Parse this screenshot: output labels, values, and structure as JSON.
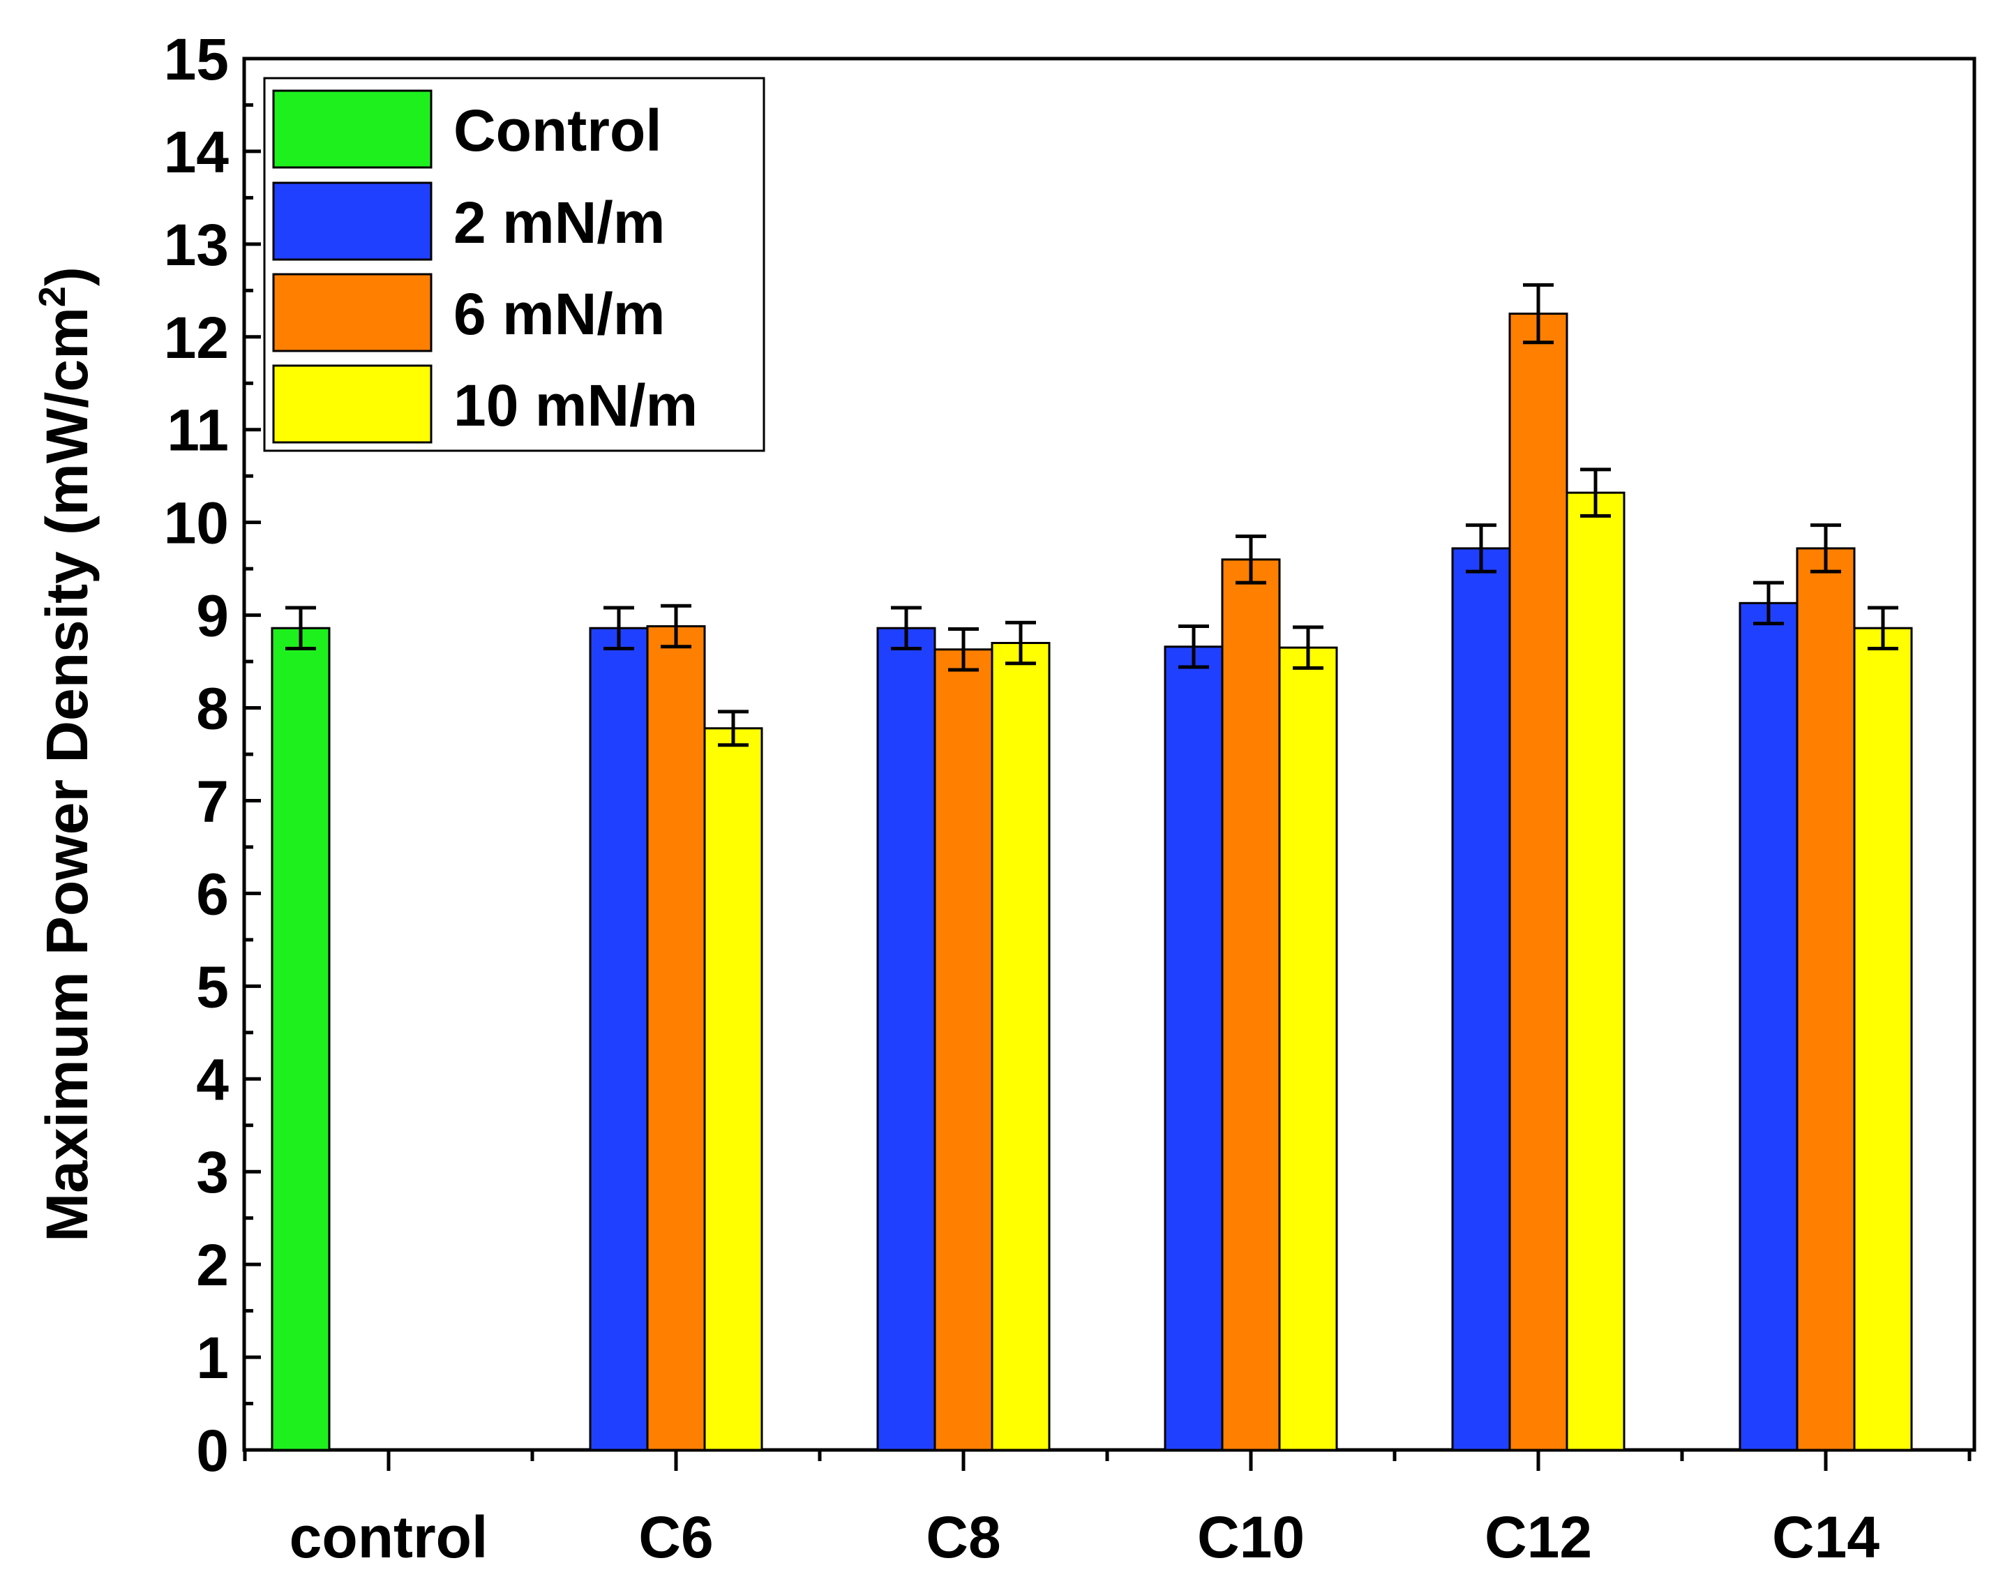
{
  "chart_data": {
    "type": "bar",
    "title": "",
    "xlabel": "",
    "ylabel": "Maximum Power Density (mW/cm",
    "ylabel_sup": "2",
    "ylabel_close": ")",
    "ylim": [
      0,
      15
    ],
    "yticks": [
      "0",
      "1",
      "2",
      "3",
      "4",
      "5",
      "6",
      "7",
      "8",
      "9",
      "10",
      "11",
      "12",
      "13",
      "14",
      "15"
    ],
    "categories": [
      "control",
      "C6",
      "C8",
      "C10",
      "C12",
      "C14"
    ],
    "legend_position": "top-left",
    "series": [
      {
        "name": "Control",
        "color": "#1ef01e",
        "values": [
          8.86,
          null,
          null,
          null,
          null,
          null
        ],
        "errors": [
          0.22,
          null,
          null,
          null,
          null,
          null
        ]
      },
      {
        "name": "2 mN/m",
        "color": "#2040ff",
        "values": [
          null,
          8.86,
          8.86,
          8.66,
          9.72,
          9.13
        ],
        "errors": [
          null,
          0.22,
          0.22,
          0.22,
          0.25,
          0.22
        ]
      },
      {
        "name": "6 mN/m",
        "color": "#ff7f00",
        "values": [
          null,
          8.88,
          8.63,
          9.6,
          12.25,
          9.72
        ],
        "errors": [
          null,
          0.22,
          0.22,
          0.25,
          0.31,
          0.25
        ]
      },
      {
        "name": "10 mN/m",
        "color": "#ffff00",
        "values": [
          null,
          7.78,
          8.7,
          8.65,
          10.32,
          8.86
        ],
        "errors": [
          null,
          0.18,
          0.22,
          0.22,
          0.25,
          0.22
        ]
      }
    ]
  }
}
